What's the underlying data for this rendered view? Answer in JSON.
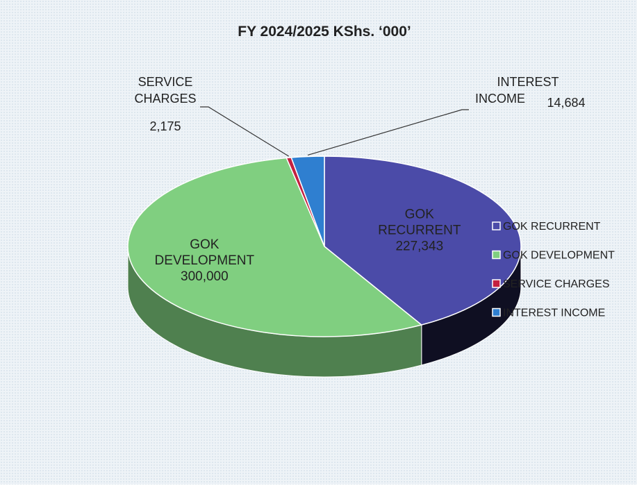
{
  "chart_data": {
    "type": "pie",
    "title": "FY 2024/2025 KShs. ‘000’",
    "categories": [
      "GOK RECURRENT",
      "GOK DEVELOPMENT",
      "SERVICE CHARGES",
      "INTEREST INCOME"
    ],
    "values": [
      227343,
      300000,
      2175,
      14684
    ],
    "value_labels": [
      "227,343",
      "300,000",
      "2,175",
      "14,684"
    ],
    "colors": [
      "#4b4ba8",
      "#80cf80",
      "#c42040",
      "#2f7fd0"
    ],
    "legend": "right"
  }
}
